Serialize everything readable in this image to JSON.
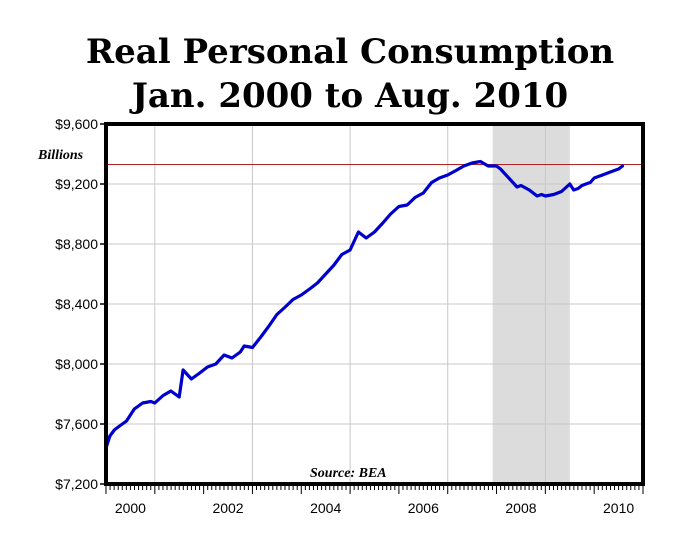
{
  "chart_data": {
    "type": "line",
    "title": "Real Personal Consumption",
    "subtitle": "Jan. 2000 to Aug. 2010",
    "units_note": "Billions",
    "source": "Source: BEA",
    "xlim": [
      2000.0,
      2011.0
    ],
    "ylim": [
      7200,
      9600
    ],
    "y_ticks": [
      7200,
      7600,
      8000,
      8400,
      8800,
      9200,
      9600
    ],
    "y_tick_labels": [
      "$7,200",
      "$7,600",
      "$8,000",
      "$8,400",
      "$8,800",
      "$9,200",
      "$9,600"
    ],
    "x_ticks": [
      2000,
      2002,
      2004,
      2006,
      2008,
      2010
    ],
    "x_tick_labels": [
      "2000",
      "2002",
      "2004",
      "2006",
      "2008",
      "2010"
    ],
    "grid": true,
    "recession_shading": [
      2007.92,
      2009.5
    ],
    "reference_line": 9330,
    "series": [
      {
        "color": "#0000cc",
        "x": [
          2000.0,
          2000.08,
          2000.17,
          2000.25,
          2000.42,
          2000.58,
          2000.75,
          2000.92,
          2001.0,
          2001.17,
          2001.33,
          2001.5,
          2001.58,
          2001.75,
          2001.92,
          2002.08,
          2002.25,
          2002.42,
          2002.58,
          2002.75,
          2002.83,
          2003.0,
          2003.17,
          2003.33,
          2003.5,
          2003.67,
          2003.83,
          2004.0,
          2004.17,
          2004.33,
          2004.5,
          2004.67,
          2004.83,
          2005.0,
          2005.17,
          2005.33,
          2005.5,
          2005.67,
          2005.83,
          2006.0,
          2006.17,
          2006.33,
          2006.5,
          2006.67,
          2006.83,
          2007.0,
          2007.17,
          2007.33,
          2007.5,
          2007.67,
          2007.83,
          2008.0,
          2008.08,
          2008.25,
          2008.42,
          2008.5,
          2008.67,
          2008.83,
          2008.92,
          2009.0,
          2009.17,
          2009.33,
          2009.5,
          2009.58,
          2009.67,
          2009.75,
          2009.83,
          2009.92,
          2010.0,
          2010.17,
          2010.33,
          2010.5,
          2010.58
        ],
        "y": [
          7440,
          7520,
          7560,
          7580,
          7620,
          7700,
          7740,
          7750,
          7740,
          7790,
          7820,
          7780,
          7960,
          7900,
          7940,
          7980,
          8000,
          8060,
          8040,
          8080,
          8120,
          8110,
          8180,
          8250,
          8330,
          8380,
          8430,
          8460,
          8500,
          8540,
          8600,
          8660,
          8730,
          8760,
          8880,
          8840,
          8880,
          8940,
          9000,
          9050,
          9060,
          9110,
          9140,
          9210,
          9240,
          9260,
          9290,
          9320,
          9340,
          9350,
          9320,
          9320,
          9300,
          9240,
          9180,
          9190,
          9160,
          9120,
          9130,
          9120,
          9130,
          9150,
          9200,
          9160,
          9170,
          9190,
          9200,
          9210,
          9240,
          9260,
          9280,
          9300,
          9320
        ]
      }
    ]
  }
}
